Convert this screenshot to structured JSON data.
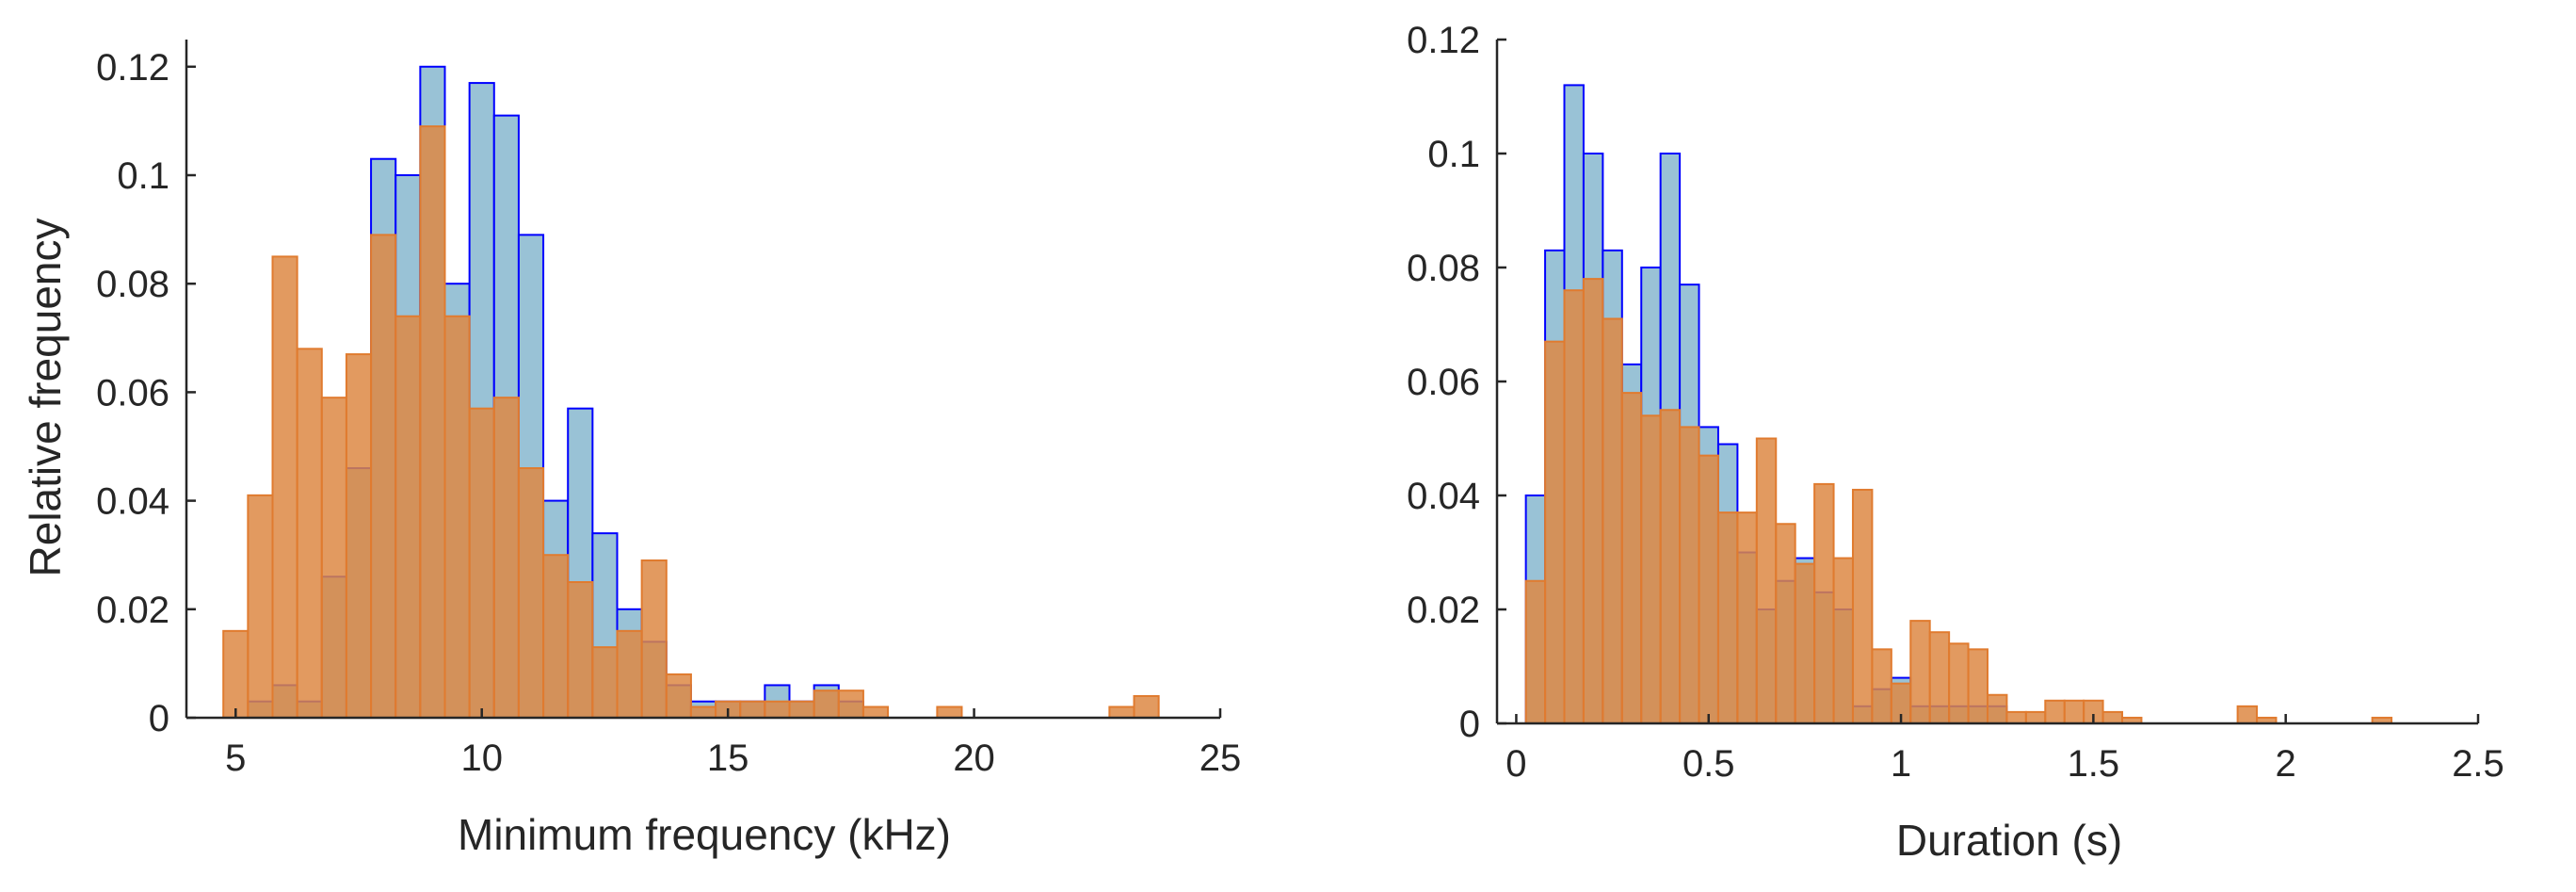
{
  "colors": {
    "series_1_fill": "#99c2d6",
    "series_1_edge": "#0000ff",
    "series_2_fill": "#dd8844",
    "series_2_edge": "#e07b2f",
    "axis": "#262626"
  },
  "chart_data": [
    {
      "type": "bar",
      "subtype": "histogram",
      "xlabel": "Minimum frequency (kHz)",
      "ylabel": "Relative frequency",
      "xlim": [
        4,
        25
      ],
      "ylim": [
        0,
        0.125
      ],
      "xticks": [
        5,
        10,
        15,
        20,
        25
      ],
      "yticks": [
        0,
        0.02,
        0.04,
        0.06,
        0.08,
        0.1,
        0.12
      ],
      "ytick_labels": [
        "0",
        "0.02",
        "0.04",
        "0.06",
        "0.08",
        "0.1",
        "0.12"
      ],
      "xtick_labels": [
        "5",
        "10",
        "15",
        "20",
        "25"
      ],
      "grid": false,
      "series": [
        {
          "bin_width": 0.5,
          "bin_starts": [
            5.25,
            5.75,
            6.25,
            6.75,
            7.25,
            7.75,
            8.25,
            8.75,
            9.25,
            9.75,
            10.25,
            10.75,
            11.25,
            11.75,
            12.25,
            12.75,
            13.25,
            13.75,
            14.25,
            14.75,
            15.25,
            15.75,
            16.25,
            16.75,
            17.25,
            17.75,
            18.25
          ],
          "values": [
            0.003,
            0.006,
            0.003,
            0.026,
            0.046,
            0.103,
            0.1,
            0.12,
            0.08,
            0.117,
            0.111,
            0.089,
            0.04,
            0.057,
            0.034,
            0.02,
            0.014,
            0.006,
            0.003,
            0.003,
            0.003,
            0.006,
            0.003,
            0.006,
            0.003,
            0,
            0
          ]
        },
        {
          "bin_width": 0.5,
          "bin_starts": [
            4.75,
            5.25,
            5.75,
            6.25,
            6.75,
            7.25,
            7.75,
            8.25,
            8.75,
            9.25,
            9.75,
            10.25,
            10.75,
            11.25,
            11.75,
            12.25,
            12.75,
            13.25,
            13.75,
            14.25,
            14.75,
            15.25,
            15.75,
            16.25,
            16.75,
            17.25,
            17.75,
            19.25,
            22.75,
            23.25
          ],
          "values": [
            0.016,
            0.041,
            0.085,
            0.068,
            0.059,
            0.067,
            0.089,
            0.074,
            0.109,
            0.074,
            0.057,
            0.059,
            0.046,
            0.03,
            0.025,
            0.013,
            0.016,
            0.029,
            0.008,
            0.002,
            0.003,
            0.003,
            0.003,
            0.003,
            0.005,
            0.005,
            0.002,
            0.002,
            0.002,
            0.004
          ]
        }
      ]
    },
    {
      "type": "bar",
      "subtype": "histogram",
      "xlabel": "Duration (s)",
      "ylabel": "",
      "xlim": [
        -0.05,
        2.5
      ],
      "ylim": [
        0,
        0.12
      ],
      "xticks": [
        0,
        0.5,
        1,
        1.5,
        2,
        2.5
      ],
      "xtick_labels": [
        "0",
        "0.5",
        "1",
        "1.5",
        "2",
        "2.5"
      ],
      "yticks": [
        0,
        0.02,
        0.04,
        0.06,
        0.08,
        0.1,
        0.12
      ],
      "ytick_labels": [
        "0",
        "0.02",
        "0.04",
        "0.06",
        "0.08",
        "0.1",
        "0.12"
      ],
      "grid": false,
      "series": [
        {
          "bin_width": 0.05,
          "bin_starts": [
            0.025,
            0.075,
            0.125,
            0.175,
            0.225,
            0.275,
            0.325,
            0.375,
            0.425,
            0.475,
            0.525,
            0.575,
            0.625,
            0.675,
            0.725,
            0.775,
            0.825,
            0.875,
            0.925,
            0.975,
            1.025,
            1.075,
            1.125,
            1.175,
            1.225
          ],
          "values": [
            0.04,
            0.083,
            0.112,
            0.1,
            0.083,
            0.063,
            0.08,
            0.1,
            0.077,
            0.052,
            0.049,
            0.03,
            0.02,
            0.025,
            0.029,
            0.023,
            0.02,
            0.003,
            0.006,
            0.008,
            0.003,
            0.003,
            0.003,
            0.003,
            0.003
          ]
        },
        {
          "bin_width": 0.05,
          "bin_starts": [
            0.025,
            0.075,
            0.125,
            0.175,
            0.225,
            0.275,
            0.325,
            0.375,
            0.425,
            0.475,
            0.525,
            0.575,
            0.625,
            0.675,
            0.725,
            0.775,
            0.825,
            0.875,
            0.925,
            0.975,
            1.025,
            1.075,
            1.125,
            1.175,
            1.225,
            1.275,
            1.325,
            1.375,
            1.425,
            1.475,
            1.525,
            1.575,
            1.875,
            1.925,
            2.225
          ],
          "values": [
            0.025,
            0.067,
            0.076,
            0.078,
            0.071,
            0.058,
            0.054,
            0.055,
            0.052,
            0.047,
            0.037,
            0.037,
            0.05,
            0.035,
            0.028,
            0.042,
            0.029,
            0.041,
            0.013,
            0.007,
            0.018,
            0.016,
            0.014,
            0.013,
            0.005,
            0.002,
            0.002,
            0.004,
            0.004,
            0.004,
            0.002,
            0.001,
            0.003,
            0.001,
            0.001
          ]
        }
      ]
    }
  ]
}
